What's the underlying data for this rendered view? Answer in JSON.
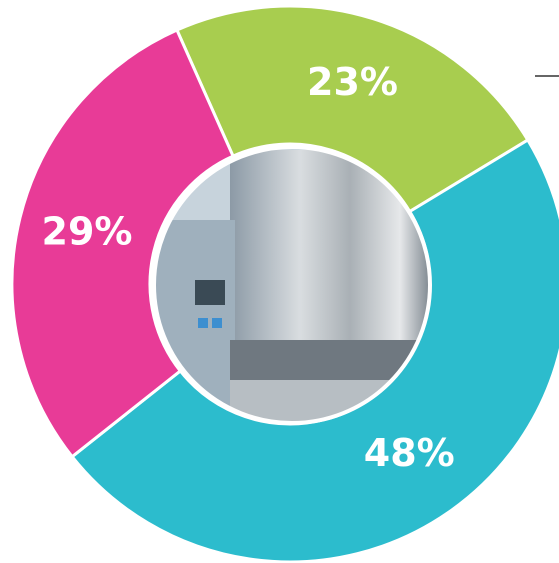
{
  "chart_data": {
    "type": "donut",
    "values": [
      23,
      48,
      29
    ],
    "value_labels": [
      "23%",
      "48%",
      "29%"
    ],
    "colors": [
      "#a8cd4f",
      "#2cbccd",
      "#e83b97"
    ]
  }
}
